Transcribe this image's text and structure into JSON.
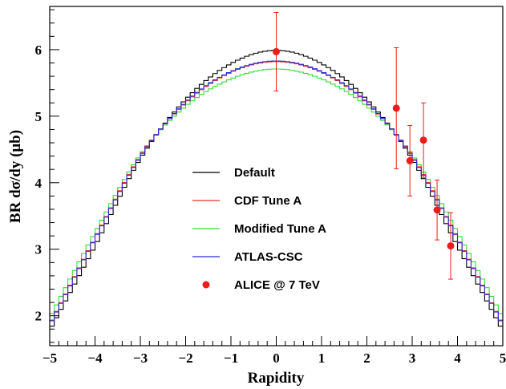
{
  "chart_data": {
    "type": "line",
    "title": "",
    "xlabel": "Rapidity",
    "ylabel": "BR dσ/dy (μb)",
    "xlim": [
      -5,
      5
    ],
    "ylim": [
      1.55,
      6.65
    ],
    "xticks": [
      "−5",
      "−4",
      "−3",
      "−2",
      "−1",
      "0",
      "1",
      "2",
      "3",
      "4",
      "5"
    ],
    "yticks": [
      "2",
      "3",
      "4",
      "5",
      "6"
    ],
    "grid": false,
    "legend_position": "center-left",
    "series": [
      {
        "name": "Default",
        "color": "#000000",
        "style": "histogram",
        "x": [
          -5,
          -4,
          -3,
          -2,
          -1,
          0,
          1,
          2,
          3,
          4,
          5
        ],
        "values": [
          1.78,
          3.05,
          4.36,
          5.25,
          5.79,
          5.99,
          5.79,
          5.25,
          4.36,
          3.05,
          1.78
        ]
      },
      {
        "name": "CDF Tune A",
        "color": "#e8332e",
        "style": "histogram",
        "x": [
          -5,
          -4,
          -3,
          -2,
          -1,
          0,
          1,
          2,
          3,
          4,
          5
        ],
        "values": [
          1.87,
          3.17,
          4.4,
          5.2,
          5.66,
          5.82,
          5.66,
          5.2,
          4.4,
          3.17,
          1.87
        ]
      },
      {
        "name": "Modified Tune A",
        "color": "#33dd33",
        "style": "histogram",
        "x": [
          -5,
          -4,
          -3,
          -2,
          -1,
          0,
          1,
          2,
          3,
          4,
          5
        ],
        "values": [
          1.97,
          3.25,
          4.42,
          5.15,
          5.56,
          5.71,
          5.56,
          5.15,
          4.42,
          3.25,
          1.97
        ]
      },
      {
        "name": "ATLAS-CSC",
        "color": "#2a2ad4",
        "style": "histogram",
        "x": [
          -5,
          -4,
          -3,
          -2,
          -1,
          0,
          1,
          2,
          3,
          4,
          5
        ],
        "values": [
          1.86,
          3.16,
          4.39,
          5.21,
          5.67,
          5.83,
          5.67,
          5.21,
          4.39,
          3.16,
          1.86
        ]
      },
      {
        "name": "ALICE @ 7 TeV",
        "color": "#ee1c1c",
        "style": "points",
        "points": [
          {
            "x": 0.0,
            "y": 5.97,
            "err": 0.59
          },
          {
            "x": 2.65,
            "y": 5.12,
            "err": 0.91
          },
          {
            "x": 2.95,
            "y": 4.33,
            "err": 0.53
          },
          {
            "x": 3.25,
            "y": 4.64,
            "err": 0.56
          },
          {
            "x": 3.55,
            "y": 3.59,
            "err": 0.45
          },
          {
            "x": 3.85,
            "y": 3.05,
            "err": 0.5
          }
        ]
      }
    ]
  }
}
